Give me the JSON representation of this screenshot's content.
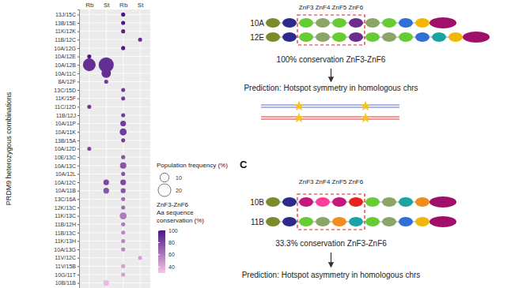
{
  "chart_data": {
    "type": "dot",
    "y_label": "PRDM9 heterozygous combinations",
    "grid": true,
    "categories": [
      "13J/15C",
      "13B/15E",
      "11K/12K",
      "11B/12C",
      "10A/12G",
      "10A/12E",
      "10A/12B",
      "10A/11C",
      "8A/12F",
      "13C/15D",
      "11K/15F",
      "11C/12D",
      "11B/12J",
      "10A/11P",
      "10A/11K",
      "13B/15A",
      "10A/12D",
      "10E/13C",
      "10A/13C",
      "10A/12L",
      "10A/12C",
      "10A/11B",
      "13C/16A",
      "12K/13C",
      "11K/13C",
      "11B/12H",
      "11B/13C",
      "11K/13H",
      "10A/13G",
      "11V/12C",
      "11V/15B",
      "10G/11T",
      "10B/11B"
    ],
    "series": [
      {
        "name": "Rb",
        "values": [
          null,
          null,
          null,
          null,
          null,
          2,
          20,
          null,
          null,
          null,
          null,
          2,
          null,
          null,
          null,
          null,
          2,
          null,
          null,
          null,
          null,
          null,
          null,
          null,
          null,
          null,
          null,
          null,
          null,
          null,
          null,
          null,
          null
        ],
        "conservation": [
          null,
          null,
          null,
          null,
          null,
          100,
          90,
          null,
          null,
          null,
          null,
          85,
          null,
          null,
          null,
          null,
          80,
          null,
          null,
          null,
          null,
          null,
          null,
          null,
          null,
          null,
          null,
          null,
          null,
          null,
          null,
          null,
          null
        ]
      },
      {
        "name": "St",
        "values": [
          null,
          null,
          null,
          null,
          null,
          null,
          28,
          11,
          2,
          null,
          null,
          null,
          null,
          null,
          null,
          null,
          null,
          null,
          null,
          null,
          4,
          4,
          null,
          null,
          null,
          null,
          null,
          null,
          null,
          null,
          null,
          null,
          4
        ],
        "conservation": [
          null,
          null,
          null,
          null,
          null,
          null,
          90,
          90,
          85,
          null,
          null,
          null,
          null,
          null,
          null,
          null,
          null,
          null,
          null,
          null,
          80,
          75,
          null,
          null,
          null,
          null,
          null,
          null,
          null,
          null,
          null,
          null,
          35
        ]
      },
      {
        "name": "Rb",
        "values": [
          2,
          2,
          2,
          null,
          2,
          null,
          null,
          null,
          null,
          2,
          2,
          null,
          2,
          4,
          6,
          2,
          null,
          2,
          5,
          2,
          4,
          3,
          2,
          2,
          6,
          2,
          2,
          2,
          2,
          null,
          2,
          2,
          null
        ],
        "conservation": [
          100,
          100,
          95,
          null,
          100,
          null,
          null,
          null,
          null,
          85,
          85,
          null,
          85,
          85,
          85,
          85,
          null,
          75,
          75,
          75,
          80,
          75,
          65,
          65,
          60,
          60,
          55,
          55,
          55,
          null,
          45,
          45,
          null
        ]
      },
      {
        "name": "St",
        "values": [
          null,
          null,
          null,
          2,
          null,
          null,
          null,
          null,
          null,
          null,
          null,
          null,
          null,
          null,
          null,
          null,
          null,
          null,
          null,
          null,
          null,
          null,
          null,
          null,
          null,
          null,
          null,
          null,
          null,
          2,
          null,
          null,
          null
        ],
        "conservation": [
          null,
          null,
          null,
          90,
          null,
          null,
          null,
          null,
          null,
          null,
          null,
          null,
          null,
          null,
          null,
          null,
          null,
          null,
          null,
          null,
          null,
          null,
          null,
          null,
          null,
          null,
          null,
          null,
          null,
          45,
          null,
          null,
          null
        ]
      }
    ],
    "size_legend": {
      "title": "Population frequency (%)",
      "values": [
        10,
        20
      ]
    },
    "color_legend": {
      "title": [
        "ZnF3-ZnF6",
        "Aa sequence",
        "conservation (%)"
      ],
      "range": [
        30,
        100
      ],
      "ticks": [
        40,
        60,
        80,
        100
      ]
    }
  },
  "diagram": {
    "panels": [
      {
        "label": null,
        "header": "ZnF3 ZnF4 ZnF5 ZnF6",
        "rows": [
          {
            "label": "10A",
            "fingers": [
              "#7b8a2a",
              "#2d2a8c",
              "#66cc33",
              "#8aa565",
              "#66cc33",
              "#6b2c8c",
              "#8aa565",
              "#66cc33",
              "#2f6fd6",
              "#f2b705",
              "#a0106a"
            ]
          },
          {
            "label": "12E",
            "fingers": [
              "#7b8a2a",
              "#2d2a8c",
              "#66cc33",
              "#8aa565",
              "#66cc33",
              "#6b2c8c",
              "#66cc33",
              "#8aa565",
              "#66cc33",
              "#2f6fd6",
              "#19a3a3",
              "#f2b705",
              "#a0106a"
            ]
          }
        ],
        "conservation": "100% conservation ZnF3-ZnF6",
        "prediction": "Prediction: Hotspot symmetry in homologous chrs"
      },
      {
        "label": "C",
        "header": "ZnF3 ZnF4 ZnF5 ZnF6",
        "rows": [
          {
            "label": "10B",
            "fingers": [
              "#7b8a2a",
              "#2d2a8c",
              "#c2187a",
              "#ff3d9a",
              "#c2187a",
              "#e8231d",
              "#66cc33",
              "#8aa565",
              "#19a3a3",
              "#f28c1c",
              "#a0106a"
            ]
          },
          {
            "label": "11B",
            "fingers": [
              "#7b8a2a",
              "#2d2a8c",
              "#66cc33",
              "#8aa565",
              "#f28c1c",
              "#19a3a3",
              "#66cc33",
              "#8aa565",
              "#2f6fd6",
              "#f2b705",
              "#a0106a"
            ]
          }
        ],
        "conservation": "33.3% conservation ZnF3-ZnF6",
        "prediction": "Prediction: Hotspot asymmetry in homologous chrs"
      }
    ]
  }
}
